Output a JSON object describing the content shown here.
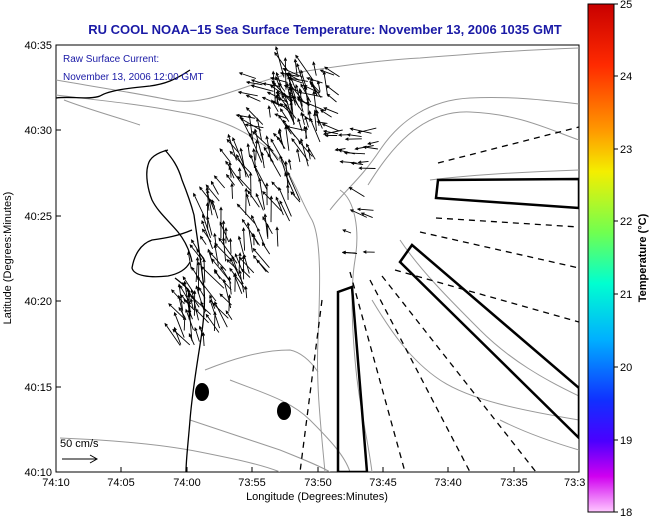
{
  "title": "RU COOL  NOAA–15  Sea Surface Temperature:  November 13, 2006 1035 GMT",
  "annotation": {
    "line1": "Raw Surface Current:",
    "line2": "November 13, 2006 12:00 GMT"
  },
  "xlabel": "Longitude (Degrees:Minutes)",
  "ylabel": "Latitude (Degrees:Minutes)",
  "x_ticks": [
    "74:10",
    "74:05",
    "74:00",
    "73:55",
    "73:50",
    "73:45",
    "73:40",
    "73:35",
    "73:3"
  ],
  "y_ticks": [
    "40:35",
    "40:30",
    "40:25",
    "40:20",
    "40:15",
    "40:10"
  ],
  "scale_label": "50 cm/s",
  "colorbar": {
    "label": "Temperature (°C)",
    "ticks": [
      "25",
      "24",
      "23",
      "22",
      "21",
      "20",
      "19",
      "18"
    ],
    "colors": [
      "#d10000",
      "#ff2000",
      "#ff8c00",
      "#f0e800",
      "#80ff40",
      "#00ffd0",
      "#00b8ff",
      "#1040ff",
      "#3a00ff",
      "#c000ff",
      "#ffb0ff"
    ]
  },
  "map_colors": {
    "coast": "#000000",
    "bathymetry": "#999999",
    "vectors": "#000000",
    "title": "#1a1aa6"
  }
}
